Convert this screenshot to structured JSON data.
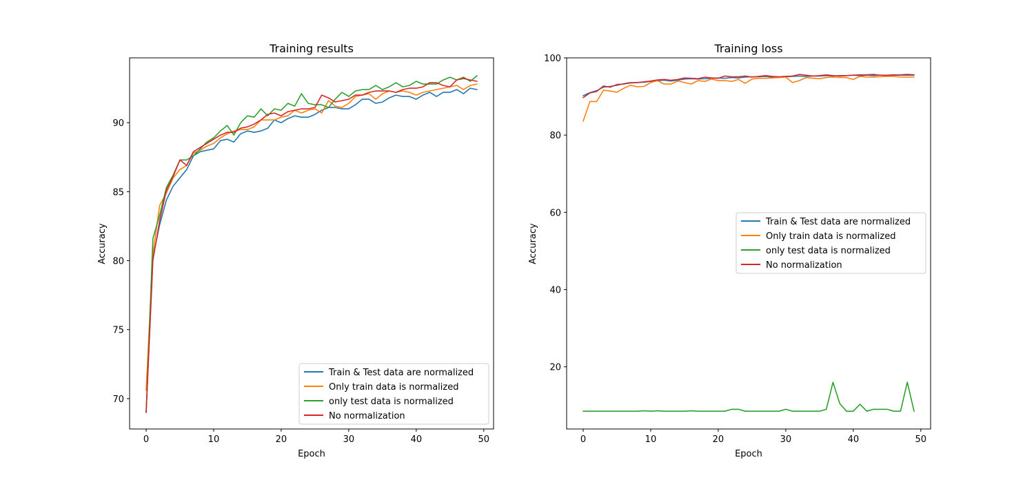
{
  "chart_data": [
    {
      "type": "line",
      "title": "Training results",
      "xlabel": "Epoch",
      "ylabel": "Accuracy",
      "xlim": [
        -2.45,
        51.45
      ],
      "ylim": [
        67.8,
        94.7
      ],
      "xticks": [
        0,
        10,
        20,
        30,
        40,
        50
      ],
      "yticks": [
        70,
        75,
        80,
        85,
        90
      ],
      "grid": false,
      "legend_position": "lower right",
      "series": [
        {
          "name": "Train & Test data are normalized",
          "color": "#1f77b4",
          "values": [
            69.0,
            80.2,
            82.6,
            84.4,
            85.4,
            86.0,
            86.6,
            87.6,
            87.9,
            88.0,
            88.1,
            88.7,
            88.8,
            88.6,
            89.2,
            89.4,
            89.3,
            89.4,
            89.6,
            90.2,
            90.0,
            90.3,
            90.5,
            90.4,
            90.4,
            90.6,
            90.9,
            91.1,
            91.1,
            91.0,
            91.0,
            91.3,
            91.7,
            91.7,
            91.4,
            91.5,
            91.8,
            92.0,
            91.9,
            91.9,
            91.7,
            92.0,
            92.2,
            91.9,
            92.2,
            92.2,
            92.4,
            92.1,
            92.5,
            92.4
          ]
        },
        {
          "name": "Only train data is normalized",
          "color": "#ff7f0e",
          "values": [
            70.6,
            80.5,
            84.0,
            84.9,
            86.0,
            86.6,
            86.9,
            87.8,
            88.0,
            88.3,
            88.5,
            88.9,
            89.2,
            89.4,
            89.5,
            89.5,
            89.7,
            90.2,
            90.2,
            90.2,
            90.4,
            90.5,
            90.9,
            90.7,
            90.9,
            91.0,
            90.7,
            91.6,
            91.2,
            91.1,
            91.4,
            91.9,
            92.0,
            92.1,
            91.7,
            92.1,
            92.3,
            92.2,
            92.3,
            92.2,
            92.0,
            92.2,
            92.3,
            92.4,
            92.5,
            92.6,
            92.7,
            92.4,
            92.7,
            92.8
          ]
        },
        {
          "name": "only test data is normalized",
          "color": "#2ca02c",
          "values": [
            69.0,
            81.6,
            83.3,
            85.3,
            86.2,
            87.3,
            87.3,
            87.6,
            88.1,
            88.6,
            88.9,
            89.4,
            89.8,
            89.1,
            90.0,
            90.5,
            90.4,
            91.0,
            90.5,
            91.0,
            90.9,
            91.4,
            91.2,
            92.1,
            91.4,
            91.3,
            91.3,
            91.1,
            91.7,
            92.2,
            91.9,
            92.3,
            92.4,
            92.4,
            92.7,
            92.4,
            92.6,
            92.9,
            92.6,
            92.7,
            93.0,
            92.8,
            92.8,
            92.8,
            93.1,
            93.3,
            93.1,
            93.3,
            93.0,
            93.4
          ]
        },
        {
          "name": "No normalization",
          "color": "#d62728",
          "values": [
            69.0,
            80.0,
            82.9,
            85.1,
            86.1,
            87.3,
            86.9,
            87.9,
            88.2,
            88.5,
            88.8,
            89.1,
            89.3,
            89.3,
            89.6,
            89.7,
            89.9,
            90.2,
            90.6,
            90.7,
            90.5,
            90.8,
            90.9,
            91.0,
            91.0,
            91.1,
            92.0,
            91.8,
            91.5,
            91.6,
            91.7,
            92.0,
            92.0,
            92.2,
            92.3,
            92.3,
            92.3,
            92.2,
            92.4,
            92.5,
            92.5,
            92.6,
            92.9,
            92.9,
            92.7,
            92.6,
            93.1,
            93.2,
            93.1,
            93.0
          ]
        }
      ]
    },
    {
      "type": "line",
      "title": "Training loss",
      "xlabel": "Epoch",
      "ylabel": "Accuracy",
      "xlim": [
        -2.45,
        51.45
      ],
      "ylim": [
        3.9,
        100
      ],
      "xticks": [
        0,
        10,
        20,
        30,
        40,
        50
      ],
      "yticks": [
        20,
        40,
        60,
        80,
        100
      ],
      "grid": false,
      "legend_position": "center right",
      "series": [
        {
          "name": "Train & Test data are normalized",
          "color": "#1f77b4",
          "values": [
            90.2,
            91.0,
            91.5,
            92.4,
            92.6,
            92.9,
            93.3,
            93.6,
            93.6,
            93.7,
            93.9,
            94.1,
            94.2,
            94.0,
            94.2,
            94.5,
            94.6,
            94.5,
            94.6,
            94.7,
            94.8,
            94.7,
            94.9,
            94.8,
            95.0,
            95.1,
            95.1,
            95.2,
            95.0,
            95.0,
            95.1,
            95.2,
            95.3,
            95.2,
            95.3,
            95.3,
            95.4,
            95.3,
            95.4,
            95.4,
            95.5,
            95.4,
            95.5,
            95.4,
            95.5,
            95.4,
            95.5,
            95.5,
            95.5,
            95.5
          ]
        },
        {
          "name": "Only train data is normalized",
          "color": "#ff7f0e",
          "values": [
            83.6,
            88.7,
            88.7,
            91.6,
            91.4,
            91.1,
            92.1,
            92.9,
            92.5,
            92.6,
            93.6,
            94.1,
            93.2,
            93.2,
            94.0,
            93.6,
            93.2,
            94.1,
            93.9,
            94.5,
            94.1,
            94.1,
            93.9,
            94.4,
            93.4,
            94.5,
            94.7,
            94.7,
            94.8,
            94.9,
            95.0,
            93.6,
            94.1,
            94.9,
            94.7,
            94.6,
            94.9,
            95.0,
            94.9,
            94.9,
            94.4,
            95.2,
            95.0,
            95.0,
            95.1,
            95.2,
            95.2,
            95.0,
            95.0,
            95.0
          ]
        },
        {
          "name": "only test data is normalized",
          "color": "#2ca02c",
          "values": [
            8.5,
            8.5,
            8.5,
            8.5,
            8.5,
            8.5,
            8.5,
            8.5,
            8.5,
            8.6,
            8.5,
            8.6,
            8.5,
            8.5,
            8.5,
            8.5,
            8.6,
            8.5,
            8.5,
            8.5,
            8.5,
            8.5,
            9.0,
            9.0,
            8.5,
            8.5,
            8.5,
            8.5,
            8.5,
            8.5,
            9.0,
            8.5,
            8.5,
            8.5,
            8.5,
            8.5,
            9.0,
            16.0,
            10.5,
            8.5,
            8.5,
            10.3,
            8.5,
            9.0,
            9.0,
            9.0,
            8.5,
            8.5,
            16.0,
            8.5
          ]
        },
        {
          "name": "No normalization",
          "color": "#d62728",
          "values": [
            89.7,
            90.9,
            91.3,
            92.7,
            92.4,
            93.1,
            93.2,
            93.5,
            93.6,
            93.8,
            94.0,
            94.3,
            94.4,
            94.2,
            94.4,
            94.8,
            94.7,
            94.6,
            95.0,
            94.8,
            94.7,
            95.3,
            95.1,
            95.1,
            95.3,
            95.0,
            95.2,
            95.4,
            95.2,
            95.1,
            95.2,
            95.3,
            95.7,
            95.5,
            95.3,
            95.4,
            95.6,
            95.4,
            95.3,
            95.4,
            95.5,
            95.6,
            95.6,
            95.7,
            95.5,
            95.5,
            95.6,
            95.6,
            95.7,
            95.6
          ]
        }
      ]
    }
  ]
}
